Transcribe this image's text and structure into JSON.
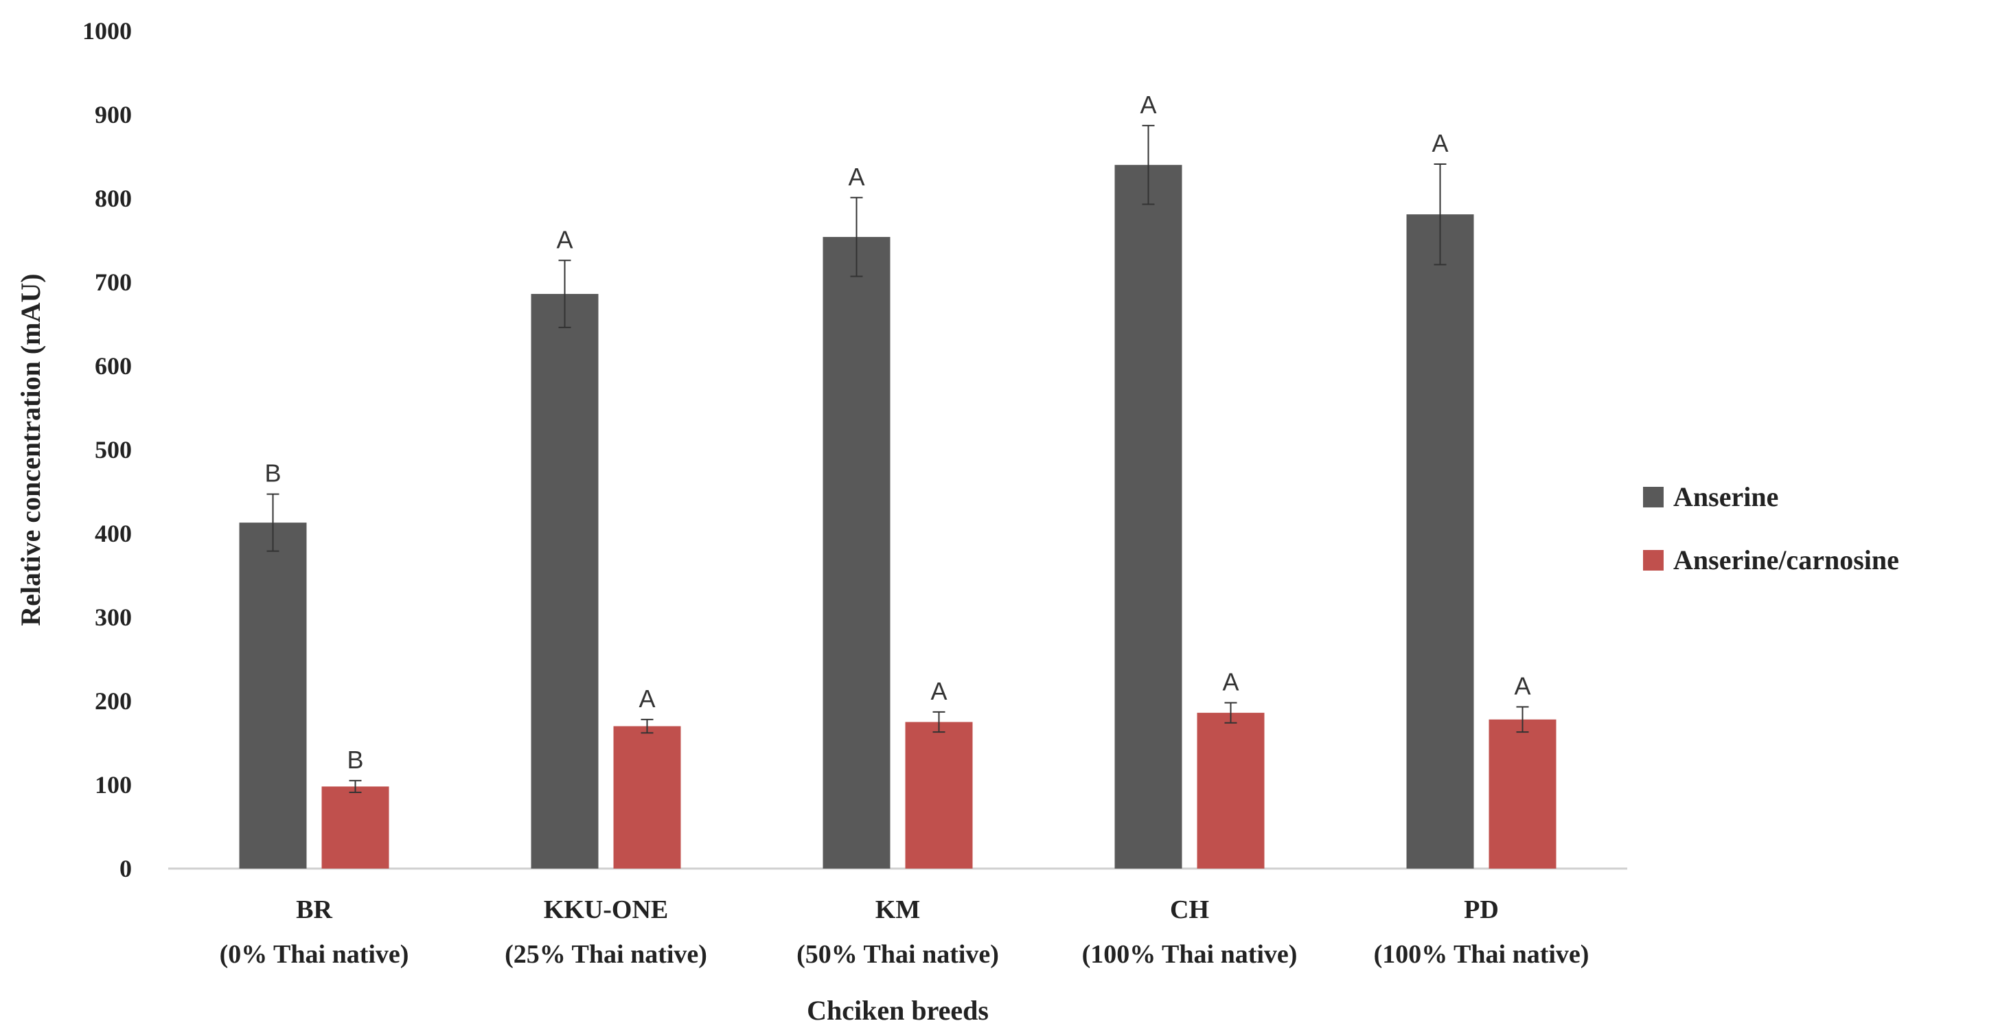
{
  "chart_data": {
    "type": "bar",
    "title": "",
    "xlabel": "Chciken breeds",
    "ylabel": "Relative concentration (mAU)",
    "ylim": [
      0,
      1000
    ],
    "yticks": [
      0,
      100,
      200,
      300,
      400,
      500,
      600,
      700,
      800,
      900,
      1000
    ],
    "grid": false,
    "legend_position": "right",
    "categories": [
      {
        "name": "BR",
        "sub": "(0% Thai native)"
      },
      {
        "name": "KKU-ONE",
        "sub": "(25% Thai native)"
      },
      {
        "name": "KM",
        "sub": "(50% Thai native)"
      },
      {
        "name": "CH",
        "sub": "(100% Thai native)"
      },
      {
        "name": "PD",
        "sub": "(100% Thai native)"
      }
    ],
    "series": [
      {
        "name": "Anserine",
        "color": "#595959",
        "values": [
          413,
          686,
          754,
          840,
          781
        ],
        "errors": [
          34,
          40,
          47,
          47,
          60
        ],
        "labels": [
          "B",
          "A",
          "A",
          "A",
          "A"
        ]
      },
      {
        "name": "Anserine/carnosine",
        "color": "#c0504d",
        "values": [
          98,
          170,
          175,
          186,
          178
        ],
        "errors": [
          7,
          8,
          12,
          12,
          15
        ],
        "labels": [
          "B",
          "A",
          "A",
          "A",
          "A"
        ]
      }
    ]
  }
}
